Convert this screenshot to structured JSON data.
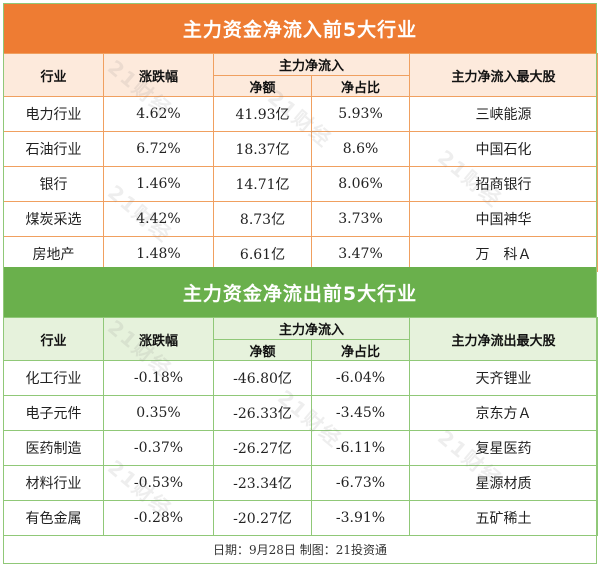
{
  "inflow": {
    "title": "主力资金净流入前5大行业",
    "headers": {
      "industry": "行业",
      "change": "涨跌幅",
      "net_group": "主力净流入",
      "net_amount": "净额",
      "net_ratio": "净占比",
      "top_stock": "主力净流入最大股"
    },
    "rows": [
      {
        "industry": "电力行业",
        "change": "4.62%",
        "amount": "41.93亿",
        "ratio": "5.93%",
        "stock": "三峡能源"
      },
      {
        "industry": "石油行业",
        "change": "6.72%",
        "amount": "18.37亿",
        "ratio": "8.6%",
        "stock": "中国石化"
      },
      {
        "industry": "银行",
        "change": "1.46%",
        "amount": "14.71亿",
        "ratio": "8.06%",
        "stock": "招商银行"
      },
      {
        "industry": "煤炭采选",
        "change": "4.42%",
        "amount": "8.73亿",
        "ratio": "3.73%",
        "stock": "中国神华"
      },
      {
        "industry": "房地产",
        "change": "1.48%",
        "amount": "6.61亿",
        "ratio": "3.47%",
        "stock": "万　科Ａ"
      }
    ]
  },
  "outflow": {
    "title": "主力资金净流出前5大行业",
    "headers": {
      "industry": "行业",
      "change": "涨跌幅",
      "net_group": "主力净流入",
      "net_amount": "净额",
      "net_ratio": "净占比",
      "top_stock": "主力净流出最大股"
    },
    "rows": [
      {
        "industry": "化工行业",
        "change": "-0.18%",
        "amount": "-46.80亿",
        "ratio": "-6.04%",
        "stock": "天齐锂业"
      },
      {
        "industry": "电子元件",
        "change": "0.35%",
        "amount": "-26.33亿",
        "ratio": "-3.45%",
        "stock": "京东方Ａ"
      },
      {
        "industry": "医药制造",
        "change": "-0.37%",
        "amount": "-26.27亿",
        "ratio": "-6.11%",
        "stock": "复星医药"
      },
      {
        "industry": "材料行业",
        "change": "-0.53%",
        "amount": "-23.34亿",
        "ratio": "-6.73%",
        "stock": "星源材质"
      },
      {
        "industry": "有色金属",
        "change": "-0.28%",
        "amount": "-20.27亿",
        "ratio": "-3.91%",
        "stock": "五矿稀土"
      }
    ]
  },
  "footer": "日期：9月28日  制图：21投资通",
  "watermark": "21财经",
  "colors": {
    "inflow_banner": "#ee7c33",
    "outflow_banner": "#6ab04c"
  }
}
